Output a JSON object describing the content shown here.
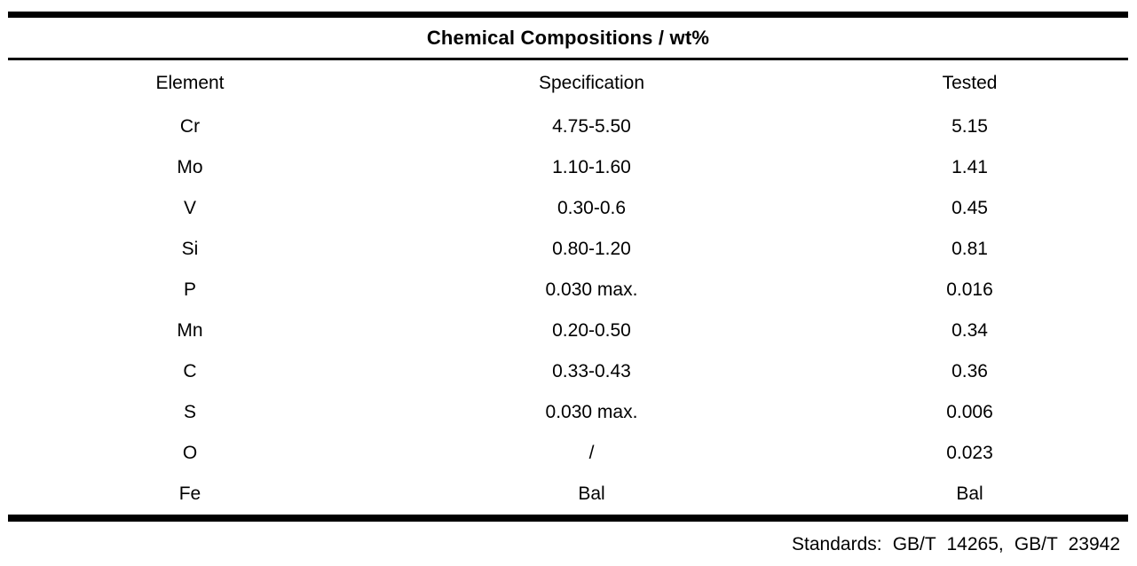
{
  "page": {
    "title": "Chemical Compositions / wt%",
    "standards_note": "Standards: GB/T 14265, GB/T 23942"
  },
  "table": {
    "columns": [
      "Element",
      "Specification",
      "Tested"
    ],
    "rows": [
      {
        "element": "Cr",
        "specification": "4.75-5.50",
        "tested": "5.15"
      },
      {
        "element": "Mo",
        "specification": "1.10-1.60",
        "tested": "1.41"
      },
      {
        "element": "V",
        "specification": "0.30-0.6",
        "tested": "0.45"
      },
      {
        "element": "Si",
        "specification": "0.80-1.20",
        "tested": "0.81"
      },
      {
        "element": "P",
        "specification": "0.030 max.",
        "tested": "0.016"
      },
      {
        "element": "Mn",
        "specification": "0.20-0.50",
        "tested": "0.34"
      },
      {
        "element": "C",
        "specification": "0.33-0.43",
        "tested": "0.36"
      },
      {
        "element": "S",
        "specification": "0.030 max.",
        "tested": "0.006"
      },
      {
        "element": "O",
        "specification": "/",
        "tested": "0.023"
      },
      {
        "element": "Fe",
        "specification": "Bal",
        "tested": "Bal"
      }
    ]
  },
  "colors": {
    "background": "#ffffff",
    "text": "#000000",
    "rule": "#000000"
  }
}
